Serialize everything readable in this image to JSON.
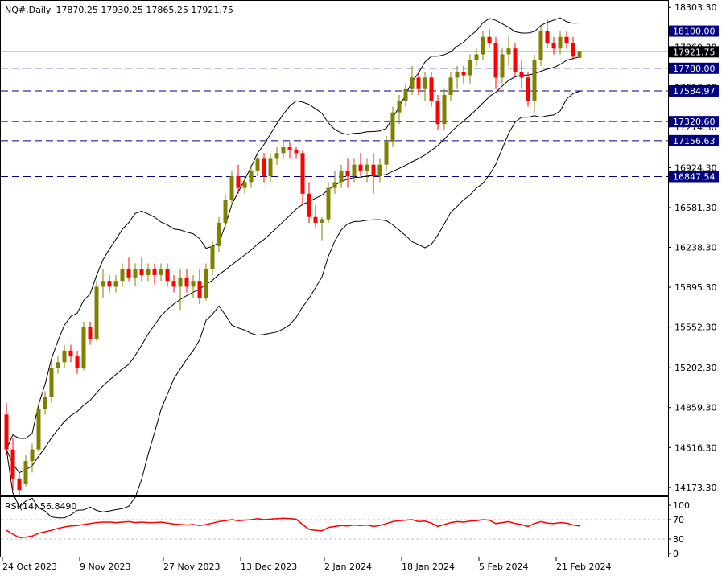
{
  "header": {
    "symbol_tf": "NQ#,Daily",
    "ohlc": "17870.25 17930.25 17865.25 17921.75"
  },
  "rsi_header": {
    "label": "RSI(14) 56.8490"
  },
  "colors": {
    "bull": "#808000",
    "bear": "#ff0000",
    "level_line": "#000080",
    "rsi": "#ff0000",
    "band": "#000000"
  },
  "chart_data": {
    "type": "candlestick",
    "y_ticks": [
      "18303.30",
      "17960.30",
      "17617.30",
      "17274.30",
      "16924.30",
      "16581.30",
      "16238.30",
      "15895.30",
      "15552.30",
      "15202.30",
      "14859.30",
      "14516.30",
      "14173.30"
    ],
    "ylim": [
      14110,
      18360
    ],
    "x_labels": [
      "24 Oct 2023",
      "9 Nov 2023",
      "27 Nov 2023",
      "13 Dec 2023",
      "2 Jan 2024",
      "18 Jan 2024",
      "5 Feb 2024",
      "21 Feb 2024"
    ],
    "x_label_index": [
      0,
      12,
      25,
      37,
      50,
      62,
      74,
      86
    ],
    "current_price": "17921.75",
    "levels": [
      {
        "label": "18100.00",
        "value": 18100.0
      },
      {
        "label": "17780.00",
        "value": 17780.0
      },
      {
        "label": "17584.97",
        "value": 17584.97
      },
      {
        "label": "17320.60",
        "value": 17320.6
      },
      {
        "label": "17156.63",
        "value": 17156.63
      },
      {
        "label": "16847.54",
        "value": 16847.54
      }
    ],
    "candles": [
      [
        14800,
        14900,
        14450,
        14500
      ],
      [
        14500,
        14600,
        14150,
        14250
      ],
      [
        14250,
        14300,
        14100,
        14150
      ],
      [
        14200,
        14450,
        14180,
        14400
      ],
      [
        14400,
        14550,
        14300,
        14500
      ],
      [
        14500,
        14900,
        14480,
        14850
      ],
      [
        14850,
        15000,
        14800,
        14950
      ],
      [
        14950,
        15250,
        14900,
        15200
      ],
      [
        15200,
        15300,
        15150,
        15250
      ],
      [
        15250,
        15400,
        15200,
        15350
      ],
      [
        15350,
        15400,
        15250,
        15300
      ],
      [
        15300,
        15350,
        15150,
        15200
      ],
      [
        15200,
        15600,
        15180,
        15550
      ],
      [
        15550,
        15600,
        15400,
        15450
      ],
      [
        15450,
        15950,
        15430,
        15900
      ],
      [
        15900,
        16050,
        15800,
        15950
      ],
      [
        15950,
        16000,
        15850,
        15900
      ],
      [
        15900,
        16000,
        15850,
        15950
      ],
      [
        15950,
        16100,
        15900,
        16050
      ],
      [
        16050,
        16150,
        15950,
        15980
      ],
      [
        15980,
        16100,
        15900,
        16050
      ],
      [
        16050,
        16150,
        15950,
        16000
      ],
      [
        16000,
        16100,
        15950,
        16050
      ],
      [
        16050,
        16100,
        15920,
        16000
      ],
      [
        16000,
        16100,
        15950,
        16050
      ],
      [
        16050,
        16100,
        15900,
        15950
      ],
      [
        15950,
        16000,
        15850,
        15900
      ],
      [
        15900,
        16050,
        15700,
        15980
      ],
      [
        15980,
        16050,
        15850,
        15900
      ],
      [
        15900,
        16000,
        15800,
        15950
      ],
      [
        15950,
        16050,
        15750,
        15800
      ],
      [
        15800,
        16100,
        15780,
        16050
      ],
      [
        16050,
        16300,
        16000,
        16250
      ],
      [
        16250,
        16500,
        16200,
        16450
      ],
      [
        16450,
        16700,
        16400,
        16650
      ],
      [
        16650,
        16900,
        16600,
        16850
      ],
      [
        16850,
        16950,
        16700,
        16750
      ],
      [
        16750,
        16850,
        16700,
        16800
      ],
      [
        16800,
        16950,
        16750,
        16900
      ],
      [
        16900,
        17050,
        16850,
        17000
      ],
      [
        17000,
        17050,
        16800,
        16850
      ],
      [
        16850,
        17050,
        16800,
        17000
      ],
      [
        17000,
        17100,
        16950,
        17050
      ],
      [
        17050,
        17150,
        17000,
        17100
      ],
      [
        17100,
        17150,
        17000,
        17080
      ],
      [
        17080,
        17100,
        17000,
        17050
      ],
      [
        17050,
        17080,
        16600,
        16700
      ],
      [
        16700,
        16800,
        16450,
        16500
      ],
      [
        16500,
        16600,
        16400,
        16450
      ],
      [
        16450,
        16500,
        16300,
        16480
      ],
      [
        16480,
        16800,
        16450,
        16750
      ],
      [
        16750,
        16900,
        16700,
        16800
      ],
      [
        16800,
        16950,
        16750,
        16900
      ],
      [
        16900,
        17000,
        16750,
        16850
      ],
      [
        16850,
        17000,
        16800,
        16950
      ],
      [
        16950,
        17050,
        16850,
        16900
      ],
      [
        16900,
        17000,
        16800,
        16950
      ],
      [
        16950,
        17050,
        16700,
        16850
      ],
      [
        16850,
        17000,
        16800,
        16950
      ],
      [
        16950,
        17200,
        16900,
        17150
      ],
      [
        17150,
        17450,
        17100,
        17400
      ],
      [
        17400,
        17550,
        17300,
        17500
      ],
      [
        17500,
        17650,
        17450,
        17600
      ],
      [
        17600,
        17800,
        17550,
        17700
      ],
      [
        17700,
        17750,
        17550,
        17600
      ],
      [
        17600,
        17750,
        17500,
        17700
      ],
      [
        17700,
        17750,
        17450,
        17500
      ],
      [
        17500,
        17550,
        17250,
        17300
      ],
      [
        17300,
        17600,
        17250,
        17550
      ],
      [
        17550,
        17750,
        17500,
        17700
      ],
      [
        17700,
        17800,
        17600,
        17750
      ],
      [
        17750,
        17800,
        17650,
        17720
      ],
      [
        17720,
        17900,
        17650,
        17850
      ],
      [
        17850,
        17950,
        17800,
        17900
      ],
      [
        17900,
        18100,
        17850,
        18050
      ],
      [
        18050,
        18120,
        17950,
        18000
      ],
      [
        18000,
        18050,
        17600,
        17700
      ],
      [
        17700,
        17950,
        17650,
        17900
      ],
      [
        17900,
        18050,
        17800,
        17950
      ],
      [
        17950,
        18000,
        17700,
        17750
      ],
      [
        17750,
        17850,
        17600,
        17700
      ],
      [
        17700,
        17750,
        17450,
        17500
      ],
      [
        17500,
        17900,
        17400,
        17850
      ],
      [
        17850,
        18150,
        17800,
        18100
      ],
      [
        18100,
        18200,
        17950,
        18000
      ],
      [
        18000,
        18050,
        17900,
        17950
      ],
      [
        17950,
        18100,
        17900,
        18050
      ],
      [
        18050,
        18100,
        17950,
        18000
      ],
      [
        18000,
        18050,
        17850,
        17880
      ],
      [
        17870,
        17930,
        17865,
        17921.75
      ]
    ],
    "rsi": {
      "label": "RSI(14)",
      "value": 56.849,
      "ticks": [
        "100",
        "70",
        "30",
        "0"
      ],
      "levels": [
        70,
        30
      ],
      "values": [
        48,
        40,
        33,
        34,
        36,
        42,
        45,
        48,
        52,
        55,
        57,
        58,
        60,
        62,
        64,
        65,
        65,
        64,
        65,
        66,
        64,
        65,
        64,
        64,
        65,
        63,
        61,
        60,
        59,
        60,
        58,
        60,
        63,
        66,
        68,
        70,
        68,
        69,
        70,
        72,
        70,
        71,
        72,
        73,
        72,
        71,
        60,
        50,
        48,
        47,
        54,
        56,
        58,
        57,
        59,
        58,
        59,
        56,
        58,
        62,
        66,
        68,
        69,
        70,
        66,
        67,
        63,
        56,
        60,
        64,
        66,
        65,
        67,
        68,
        70,
        69,
        62,
        64,
        66,
        62,
        60,
        56,
        62,
        66,
        63,
        62,
        64,
        63,
        59,
        57
      ]
    }
  }
}
